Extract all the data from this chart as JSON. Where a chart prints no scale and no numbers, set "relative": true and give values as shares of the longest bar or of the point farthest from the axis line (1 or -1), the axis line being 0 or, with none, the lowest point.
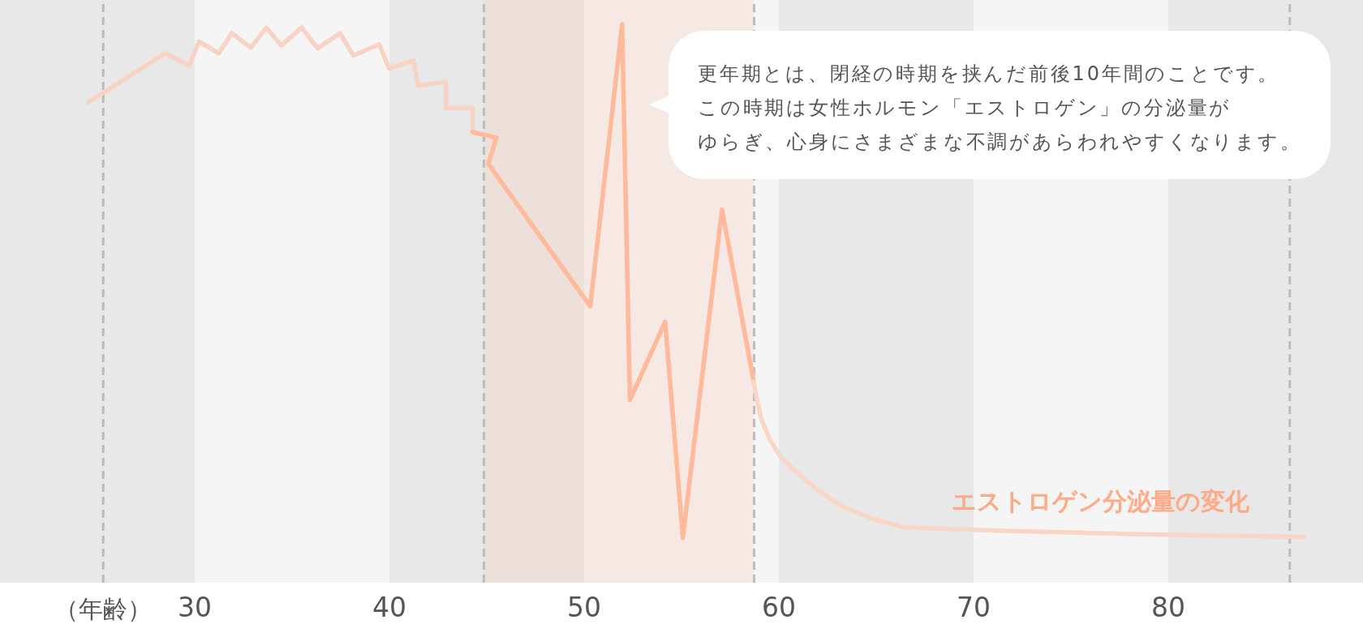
{
  "chart_data": {
    "type": "line",
    "relative": true,
    "tick_labels": "x",
    "xlabel": "（年齢）",
    "xlim": [
      20,
      90
    ],
    "xticks": [
      30,
      40,
      50,
      60,
      70,
      80
    ],
    "series": [
      {
        "color": "#f8d3c3",
        "x": [
          24.53,
          28.48,
          29.72,
          30.22,
          31.24,
          31.9,
          32.88,
          33.68,
          34.45,
          35.49,
          36.31,
          37.46,
          38.15,
          39.48,
          39.98,
          41.25,
          41.47,
          42.9,
          42.9,
          44.27,
          44.27
        ],
        "values": [
          0.86,
          0.948,
          0.926,
          0.969,
          0.948,
          0.984,
          0.958,
          0.994,
          0.962,
          0.994,
          0.957,
          0.984,
          0.944,
          0.964,
          0.921,
          0.935,
          0.89,
          0.897,
          0.85,
          0.85,
          0.807
        ]
      },
      {
        "color": "#ffb99b",
        "x": [
          44.27,
          45.5,
          45.08,
          50.31,
          51.95,
          52.35,
          54.16,
          55.07,
          57.08,
          58.71
        ],
        "values": [
          0.807,
          0.797,
          0.75,
          0.495,
          1.0,
          0.327,
          0.467,
          0.08,
          0.668,
          0.36
        ]
      },
      {
        "name": "エストロゲン分泌量の変化",
        "color": "#fad6c7",
        "x": [
          58.71,
          58.86,
          59.11,
          59.54,
          60.07,
          60.92,
          61.98,
          63.26,
          64.75,
          66.45,
          71.54,
          77.92,
          86.96
        ],
        "values": [
          0.36,
          0.33,
          0.292,
          0.256,
          0.226,
          0.197,
          0.166,
          0.137,
          0.115,
          0.099,
          0.093,
          0.087,
          0.082
        ]
      }
    ],
    "bands": [
      {
        "axis": "x",
        "from": 20,
        "to": 30,
        "color": "#e8e8e8"
      },
      {
        "axis": "x",
        "from": 40,
        "to": 50,
        "color": "#e8e8e8"
      },
      {
        "axis": "x",
        "from": 60,
        "to": 70,
        "color": "#e8e8e8"
      },
      {
        "axis": "x",
        "from": 80,
        "to": 90,
        "color": "#e8e8e8"
      },
      {
        "axis": "x",
        "from": 44.85,
        "to": 58.73,
        "color": "#f7cabb"
      }
    ],
    "ref_lines": [
      {
        "axis": "x",
        "value": 25.3,
        "color": "#bdbdbd",
        "line_style": "dashed"
      },
      {
        "axis": "x",
        "value": 44.85,
        "color": "#bdbdbd",
        "line_style": "dashed"
      },
      {
        "axis": "x",
        "value": 58.73,
        "color": "#bdbdbd",
        "line_style": "dashed"
      },
      {
        "axis": "x",
        "value": 86.24,
        "color": "#bdbdbd",
        "line_style": "dashed"
      }
    ],
    "annotations": [
      "更年期とは、閉経の時期を挟んだ前後10年間のことです。この時期は女性ホルモン「エストロゲン」の分泌量がゆらぎ、心身にさまざまな不調があらわれやすくなります。"
    ]
  }
}
